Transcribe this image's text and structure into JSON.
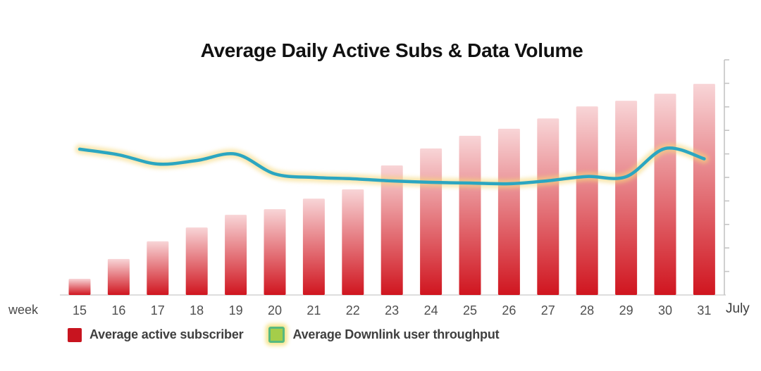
{
  "header": {
    "title": "Average Daily Active Subs & Data Volume"
  },
  "axes": {
    "x_left_label": "week",
    "x_right_label": "July",
    "y_right": {
      "side": "right",
      "tick_count": 10,
      "labels_visible": false
    }
  },
  "legend": {
    "items": [
      {
        "label": "Average active subscriber",
        "swatch": "red-square",
        "color": "#c8141f"
      },
      {
        "label": "Average Downlink user throughput",
        "swatch": "green-square-glow",
        "fill": "#a5cd4a",
        "border": "#57b97f",
        "glow": "rgba(246,228,135,0.95)"
      }
    ]
  },
  "colors": {
    "bar_top": "#f8d5d7",
    "bar_bottom": "#d0151f",
    "line": "#2ba6c1",
    "line_glow": "#f5d87c",
    "axis": "#c4c4c4",
    "baseline": "#dedede",
    "tick_text": "#4f4f4f",
    "title_text": "#111111",
    "legend_text": "#3f3f3f"
  },
  "chart_data": {
    "type": "bar",
    "title": "Average Daily Active Subs & Data Volume",
    "xlabel": "week",
    "x_right_annotation": "July",
    "categories": [
      "15",
      "16",
      "17",
      "18",
      "19",
      "20",
      "21",
      "22",
      "23",
      "24",
      "25",
      "26",
      "27",
      "28",
      "29",
      "30",
      "31"
    ],
    "series": [
      {
        "name": "Average active subscriber",
        "type": "bar",
        "values": [
          6.9,
          15.3,
          22.8,
          28.7,
          34.1,
          36.5,
          41.0,
          44.9,
          55.1,
          62.3,
          67.7,
          70.7,
          75.1,
          80.2,
          82.6,
          85.6,
          89.8
        ]
      },
      {
        "name": "Average Downlink user throughput",
        "type": "line",
        "values": [
          62.0,
          59.6,
          55.7,
          57.2,
          59.9,
          51.5,
          50.0,
          49.4,
          48.5,
          47.9,
          47.6,
          47.3,
          48.6,
          50.4,
          50.3,
          62.3,
          57.9
        ]
      }
    ],
    "ylim": [
      0,
      100
    ],
    "y_units": "percent of plot height (axis has unlabeled ticks)",
    "grid": false,
    "legend_position": "bottom"
  }
}
